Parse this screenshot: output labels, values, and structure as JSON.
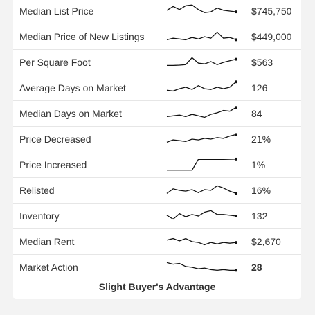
{
  "rows": [
    {
      "label": "Median List Price",
      "value": "$745,750",
      "bold": false,
      "sparkline": [
        0.55,
        0.8,
        0.6,
        0.85,
        0.9,
        0.6,
        0.4,
        0.45,
        0.7,
        0.55,
        0.5,
        0.45
      ]
    },
    {
      "label": "Median Price of New Listings",
      "value": "$449,000",
      "bold": false,
      "sparkline": [
        0.3,
        0.4,
        0.35,
        0.3,
        0.45,
        0.35,
        0.5,
        0.4,
        0.8,
        0.4,
        0.45,
        0.3
      ]
    },
    {
      "label": "Per Square Foot",
      "value": "$563",
      "bold": false,
      "sparkline": [
        0.3,
        0.3,
        0.32,
        0.35,
        0.8,
        0.45,
        0.4,
        0.55,
        0.35,
        0.5,
        0.6,
        0.7
      ]
    },
    {
      "label": "Average Days on Market",
      "value": "126",
      "bold": false,
      "sparkline": [
        0.35,
        0.3,
        0.45,
        0.55,
        0.4,
        0.65,
        0.45,
        0.4,
        0.55,
        0.45,
        0.55,
        0.9
      ]
    },
    {
      "label": "Median Days on Market",
      "value": "84",
      "bold": false,
      "sparkline": [
        0.3,
        0.35,
        0.4,
        0.3,
        0.45,
        0.35,
        0.25,
        0.45,
        0.55,
        0.7,
        0.65,
        0.9
      ]
    },
    {
      "label": "Price Decreased",
      "value": "21%",
      "bold": false,
      "sparkline": [
        0.3,
        0.45,
        0.4,
        0.35,
        0.5,
        0.45,
        0.55,
        0.5,
        0.6,
        0.55,
        0.7,
        0.8
      ]
    },
    {
      "label": "Price Increased",
      "value": "1%",
      "bold": false,
      "sparkline": [
        0.15,
        0.15,
        0.15,
        0.15,
        0.15,
        0.85,
        0.85,
        0.85,
        0.85,
        0.85,
        0.86,
        0.87
      ]
    },
    {
      "label": "Relisted",
      "value": "16%",
      "bold": false,
      "sparkline": [
        0.3,
        0.6,
        0.5,
        0.45,
        0.55,
        0.35,
        0.55,
        0.5,
        0.8,
        0.65,
        0.45,
        0.3
      ]
    },
    {
      "label": "Inventory",
      "value": "132",
      "bold": false,
      "sparkline": [
        0.55,
        0.3,
        0.65,
        0.45,
        0.6,
        0.5,
        0.75,
        0.85,
        0.6,
        0.6,
        0.55,
        0.5
      ]
    },
    {
      "label": "Median Rent",
      "value": "$2,670",
      "bold": false,
      "sparkline": [
        0.6,
        0.7,
        0.55,
        0.7,
        0.5,
        0.45,
        0.3,
        0.45,
        0.35,
        0.45,
        0.4,
        0.45
      ]
    },
    {
      "label": "Market Action",
      "value": "28",
      "bold": true,
      "sparkline": [
        0.8,
        0.7,
        0.75,
        0.55,
        0.5,
        0.4,
        0.45,
        0.35,
        0.3,
        0.35,
        0.3,
        0.3
      ]
    }
  ],
  "footer": {
    "text": "Slight Buyer's Advantage"
  },
  "colors": {
    "line": "#111111",
    "text": "#333333",
    "divider": "#e6e6e6",
    "background": "#f3f3f3"
  }
}
